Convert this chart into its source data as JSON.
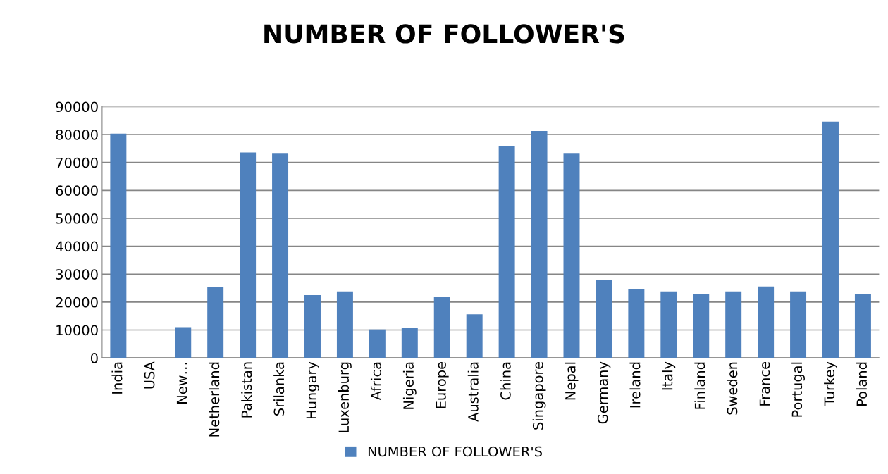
{
  "chart_data": {
    "type": "bar",
    "title": "NUMBER OF FOLLOWER'S",
    "categories": [
      "India",
      "USA",
      "New…",
      "Netherland",
      "Pakistan",
      "Srilanka",
      "Hungary",
      "Luxenburg",
      "Africa",
      "Nigeria",
      "Europe",
      "Australia",
      "China",
      "Singapore",
      "Nepal",
      "Germany",
      "Ireland",
      "Italy",
      "Finland",
      "Sweden",
      "France",
      "Portugal",
      "Turkey",
      "Poland"
    ],
    "series": [
      {
        "name": "NUMBER OF FOLLOWER'S",
        "color": "#4f81bd",
        "values": [
          80300,
          0,
          11000,
          25300,
          73600,
          73400,
          22500,
          23800,
          10200,
          10700,
          22000,
          15600,
          75700,
          81300,
          73400,
          27900,
          24500,
          23800,
          23000,
          23800,
          25600,
          23800,
          84600,
          22800
        ]
      }
    ],
    "ylim": [
      0,
      90000
    ],
    "yticks": [
      0,
      10000,
      20000,
      30000,
      40000,
      50000,
      60000,
      70000,
      80000,
      90000
    ],
    "grid": "y",
    "legend": "bottom"
  }
}
